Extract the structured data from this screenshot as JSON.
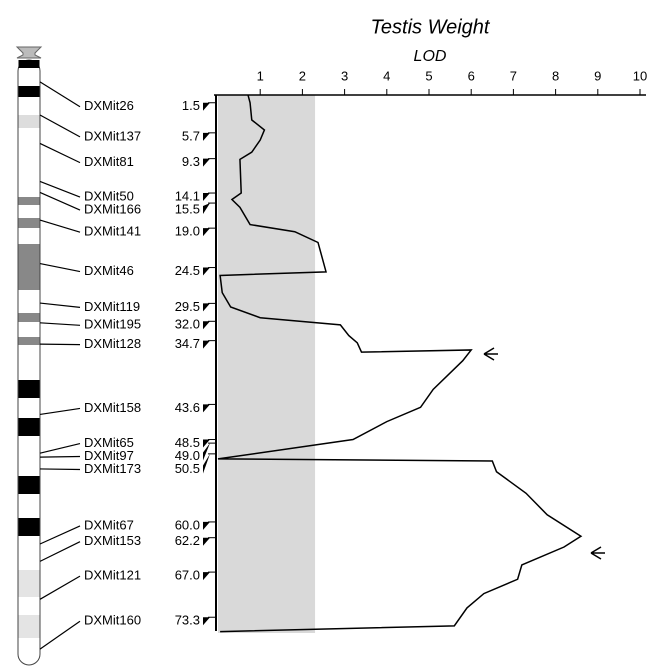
{
  "chart_data": {
    "type": "line",
    "title": "Testis Weight",
    "x_label": "LOD",
    "xlim": [
      0,
      10
    ],
    "xticks": [
      1,
      2,
      3,
      4,
      5,
      6,
      7,
      8,
      9,
      10
    ],
    "ylim": [
      0,
      75.5
    ],
    "shaded_range": [
      0,
      2.3
    ],
    "markers": [
      "DXMit26",
      "DXMit137",
      "DXMit81",
      "DXMit50",
      "DXMit166",
      "DXMit141",
      "DXMit46",
      "DXMit119",
      "DXMit195",
      "DXMit128",
      "DXMit158",
      "DXMit65",
      "DXMit97",
      "DXMit173",
      "DXMit67",
      "DXMit153",
      "DXMit121",
      "DXMit160"
    ],
    "positions": [
      1.5,
      5.7,
      9.3,
      14.1,
      15.5,
      19.0,
      24.5,
      29.5,
      32.0,
      34.7,
      43.6,
      48.5,
      49.0,
      50.5,
      60.0,
      62.2,
      67.0,
      73.3
    ],
    "position_labels": [
      "1.5",
      "5.7",
      "9.3",
      "14.1",
      "15.5",
      "19.0",
      "24.5",
      "29.5",
      "32.0",
      "34.7",
      "43.6",
      "48.5",
      "49.0",
      "50.5",
      "60.0",
      "62.2",
      "67.0",
      "73.3"
    ],
    "series": [
      {
        "color": "#000000",
        "positions": [
          0.4,
          1.5,
          3.9,
          5.3,
          6.7,
          8.4,
          9.4,
          14.1,
          15.0,
          16.1,
          18.5,
          19.5,
          21.0,
          25.1,
          25.6,
          28.0,
          30.0,
          31.5,
          32.5,
          34.0,
          35.0,
          36.3,
          36.0,
          37.5,
          41.5,
          44.0,
          46.0,
          48.5,
          51.2,
          51.5,
          53.0,
          56.0,
          59.0,
          62.0,
          63.5,
          66.0,
          68.0,
          70.0,
          72.0,
          74.5,
          75.3
        ],
        "values": [
          0.71,
          0.76,
          0.8,
          1.1,
          1.0,
          0.8,
          0.52,
          0.55,
          0.33,
          0.52,
          0.76,
          1.82,
          2.37,
          2.56,
          0.05,
          0.1,
          0.3,
          1.0,
          2.9,
          3.1,
          3.3,
          3.4,
          6.0,
          5.8,
          5.1,
          4.8,
          4.0,
          3.2,
          0.0,
          6.5,
          6.6,
          7.3,
          7.8,
          8.6,
          8.2,
          7.2,
          7.1,
          6.3,
          5.9,
          5.6,
          0.05
        ]
      }
    ]
  }
}
